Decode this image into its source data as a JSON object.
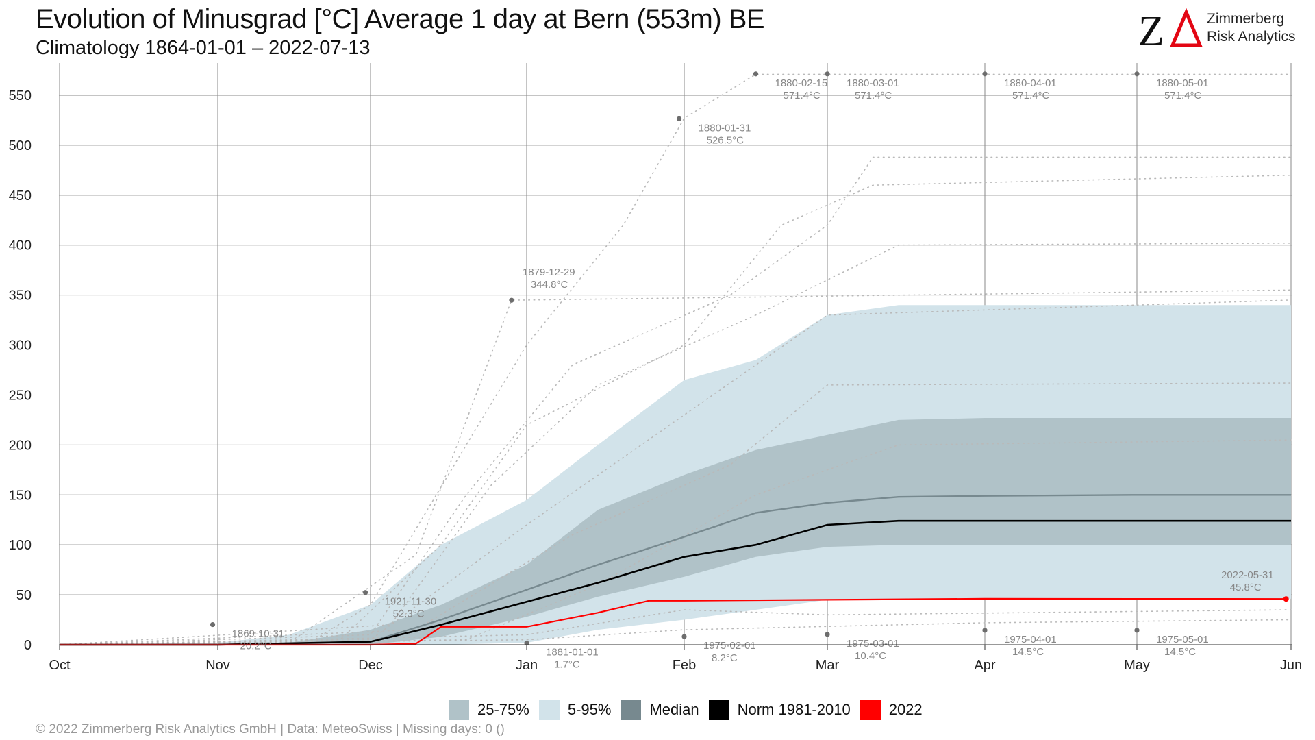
{
  "header": {
    "title": "Evolution of Minusgrad [°C] Average 1 day at Bern (553m) BE",
    "subtitle": "Climatology 1864-01-01 – 2022-07-13"
  },
  "logo": {
    "mark": "ZΔ",
    "line1": "Zimmerberg",
    "line2": "Risk Analytics",
    "mark_color": "#e30613"
  },
  "legend": [
    {
      "label": "25-75%",
      "color": "#b0c2c8"
    },
    {
      "label": "5-95%",
      "color": "#d2e3ea"
    },
    {
      "label": "Median",
      "color": "#77898f"
    },
    {
      "label": "Norm 1981-2010",
      "color": "#000000"
    },
    {
      "label": "2022",
      "color": "#ff0000"
    }
  ],
  "footer": "©  2022 Zimmerberg Risk Analytics GmbH | Data: MeteoSwiss | Missing days: 0 ()",
  "chart_data": {
    "type": "area",
    "title": "Evolution of Minusgrad [°C] Average 1 day at Bern (553m) BE",
    "x_axis": {
      "type": "date",
      "ticks": [
        "Oct",
        "Nov",
        "Dec",
        "Jan",
        "Feb",
        "Mar",
        "Apr",
        "May",
        "Jun"
      ],
      "range": [
        "Oct",
        "Jun"
      ]
    },
    "y_axis": {
      "ticks": [
        0,
        50,
        100,
        150,
        200,
        250,
        300,
        350,
        400,
        450,
        500,
        550
      ],
      "range": [
        0,
        580
      ]
    },
    "grid": true,
    "legend_position": "bottom",
    "series": [
      {
        "name": "5-95%",
        "kind": "band",
        "x": [
          "Oct",
          "Nov",
          "Nov 15",
          "Dec",
          "Dec 15",
          "Jan",
          "Jan 15",
          "Feb",
          "Feb 15",
          "Mar",
          "Mar 15",
          "Apr",
          "May",
          "Jun"
        ],
        "lower": [
          0,
          0,
          0,
          0,
          0,
          2,
          15,
          25,
          35,
          45,
          45,
          46,
          46,
          46
        ],
        "upper": [
          0,
          2,
          10,
          40,
          100,
          145,
          200,
          265,
          285,
          330,
          340,
          340,
          340,
          340
        ]
      },
      {
        "name": "25-75%",
        "kind": "band",
        "x": [
          "Oct",
          "Nov",
          "Nov 15",
          "Dec",
          "Dec 15",
          "Jan",
          "Jan 15",
          "Feb",
          "Feb 15",
          "Mar",
          "Mar 15",
          "Apr",
          "May",
          "Jun"
        ],
        "lower": [
          0,
          0,
          0,
          0,
          8,
          28,
          48,
          68,
          88,
          98,
          100,
          100,
          100,
          100
        ],
        "upper": [
          0,
          0,
          2,
          15,
          40,
          80,
          135,
          170,
          195,
          210,
          225,
          227,
          227,
          227
        ]
      },
      {
        "name": "Median",
        "kind": "line",
        "x": [
          "Oct",
          "Nov",
          "Dec",
          "Dec 15",
          "Jan",
          "Jan 15",
          "Feb",
          "Feb 15",
          "Mar",
          "Mar 15",
          "Apr",
          "May",
          "Jun"
        ],
        "values": [
          0,
          0,
          3,
          25,
          55,
          80,
          108,
          132,
          142,
          148,
          149,
          150,
          150
        ]
      },
      {
        "name": "Norm 1981-2010",
        "kind": "line",
        "x": [
          "Oct",
          "Nov",
          "Dec",
          "Dec 15",
          "Jan",
          "Jan 15",
          "Feb",
          "Feb 15",
          "Mar",
          "Mar 15",
          "Apr",
          "May",
          "Jun"
        ],
        "values": [
          0,
          0,
          3,
          20,
          43,
          62,
          88,
          100,
          120,
          124,
          124,
          124,
          124
        ]
      },
      {
        "name": "2022",
        "kind": "line",
        "x": [
          "Oct",
          "Nov",
          "Dec",
          "Dec 10",
          "Dec 15",
          "Jan",
          "Jan 15",
          "Jan 25",
          "Feb",
          "Mar",
          "Apr",
          "May 31"
        ],
        "values": [
          0,
          0,
          0,
          1,
          18,
          18,
          32,
          44,
          44,
          45,
          46,
          45.8
        ]
      }
    ],
    "annotations": [
      {
        "date": "1869-10-31",
        "label": "1869-10-31",
        "value": "20.2°C"
      },
      {
        "date": "1921-11-30",
        "label": "1921-11-30",
        "value": "52.3°C"
      },
      {
        "date": "1879-12-29",
        "label": "1879-12-29",
        "value": "344.8°C"
      },
      {
        "date": "1881-01-01",
        "label": "1881-01-01",
        "value": "1.7°C"
      },
      {
        "date": "1880-01-31",
        "label": "1880-01-31",
        "value": "526.5°C"
      },
      {
        "date": "1975-02-01",
        "label": "1975-02-01",
        "value": "8.2°C"
      },
      {
        "date": "1880-02-15",
        "label": "1880-02-15",
        "value": "571.4°C"
      },
      {
        "date": "1880-03-01",
        "label": "1880-03-01",
        "value": "571.4°C"
      },
      {
        "date": "1975-03-01",
        "label": "1975-03-01",
        "value": "10.4°C"
      },
      {
        "date": "1880-04-01",
        "label": "1880-04-01",
        "value": "571.4°C"
      },
      {
        "date": "1975-04-01",
        "label": "1975-04-01",
        "value": "14.5°C"
      },
      {
        "date": "1880-05-01",
        "label": "1880-05-01",
        "value": "571.4°C"
      },
      {
        "date": "1975-05-01",
        "label": "1975-05-01",
        "value": "14.5°C"
      },
      {
        "date": "2022-05-31",
        "label": "2022-05-31",
        "value": "45.8°C"
      }
    ]
  }
}
